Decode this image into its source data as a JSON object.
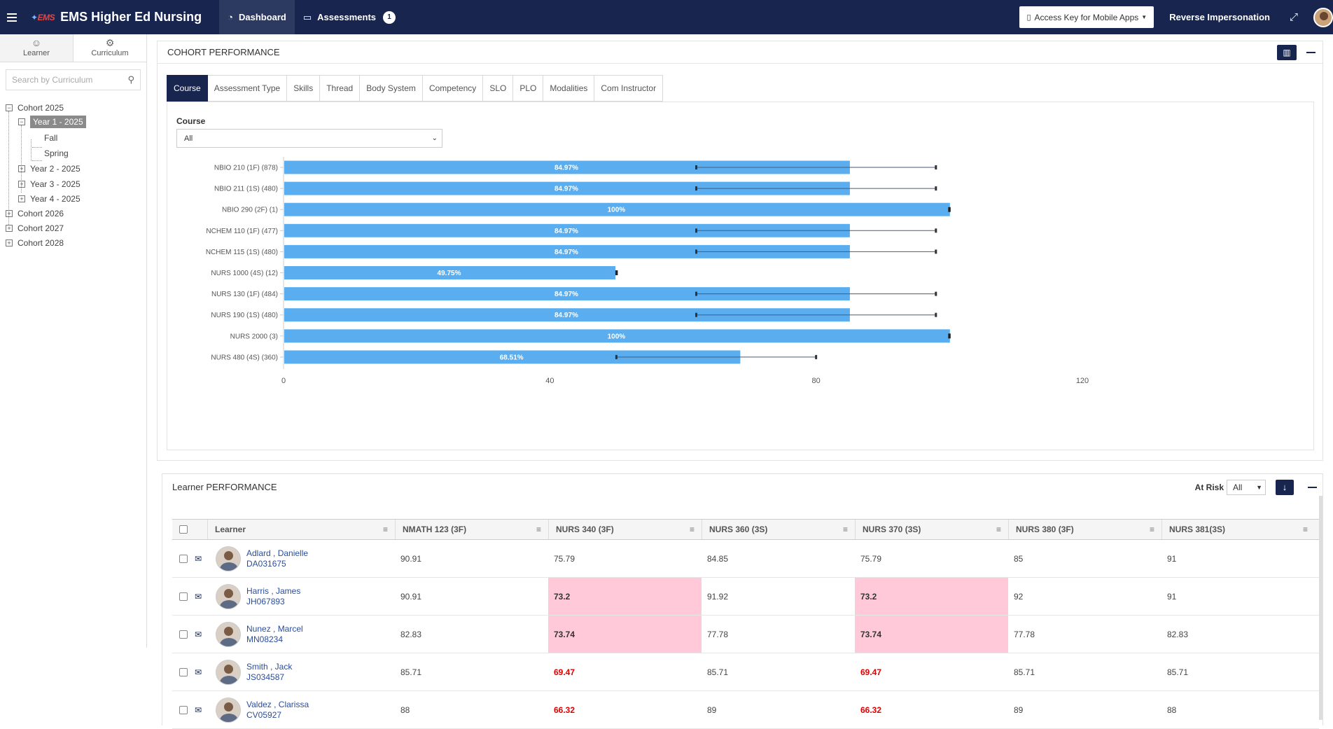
{
  "topnav": {
    "logo": "EMS",
    "title": "EMS Higher Ed Nursing",
    "tabs": [
      {
        "label": "Dashboard",
        "icon": "dashboard-icon"
      },
      {
        "label": "Assessments",
        "icon": "monitor-icon",
        "badge": "1"
      }
    ],
    "access_key": "Access Key for Mobile Apps",
    "reverse_impersonation": "Reverse Impersonation"
  },
  "sidebar": {
    "tabs": [
      {
        "label": "Learner",
        "icon": "user-icon"
      },
      {
        "label": "Curriculum",
        "icon": "curriculum-icon"
      }
    ],
    "search_placeholder": "Search by Curriculum",
    "tree": {
      "cohort2025": "Cohort 2025",
      "year1": "Year 1 - 2025",
      "fall": "Fall",
      "spring": "Spring",
      "year2": "Year 2 - 2025",
      "year3": "Year 3 - 2025",
      "year4": "Year 4 - 2025",
      "cohort2026": "Cohort 2026",
      "cohort2027": "Cohort 2027",
      "cohort2028": "Cohort 2028"
    }
  },
  "cohort": {
    "title": "COHORT PERFORMANCE",
    "tabs": [
      "Course",
      "Assessment Type",
      "Skills",
      "Thread",
      "Body System",
      "Competency",
      "SLO",
      "PLO",
      "Modalities",
      "Com Instructor"
    ],
    "filter_label": "Course",
    "filter_value": "All"
  },
  "chart_data": {
    "type": "bar",
    "orientation": "horizontal",
    "categories": [
      "NBIO 210 (1F) (878)",
      "NBIO 211 (1S) (480)",
      "NBIO 290 (2F) (1)",
      "NCHEM 110 (1F) (477)",
      "NCHEM 115 (1S) (480)",
      "NURS 1000 (4S) (12)",
      "NURS 130 (1F) (484)",
      "NURS 190 (1S) (480)",
      "NURS 2000 (3)",
      "NURS 480 (4S) (360)"
    ],
    "values": [
      84.97,
      84.97,
      100,
      84.97,
      84.97,
      49.75,
      84.97,
      84.97,
      100,
      68.51
    ],
    "labels": [
      "84.97%",
      "84.97%",
      "100%",
      "84.97%",
      "84.97%",
      "49.75%",
      "84.97%",
      "84.97%",
      "100%",
      "68.51%"
    ],
    "ranges": [
      [
        62,
        98
      ],
      [
        62,
        98
      ],
      [
        100,
        100
      ],
      [
        62,
        98
      ],
      [
        62,
        98
      ],
      [
        50,
        50
      ],
      [
        62,
        98
      ],
      [
        62,
        98
      ],
      [
        100,
        100
      ],
      [
        50,
        80
      ]
    ],
    "xlim": [
      0,
      120
    ],
    "xticks": [
      "0",
      "40",
      "80",
      "120"
    ],
    "bar_color": "#5aaef0"
  },
  "learners": {
    "title": "Learner PERFORMANCE",
    "at_risk_label": "At Risk",
    "at_risk_value": "All",
    "columns": [
      "Learner",
      "NMATH 123 (3F)",
      "NURS 340 (3F)",
      "NURS 360 (3S)",
      "NURS 370 (3S)",
      "NURS 380 (3F)",
      "NURS 381(3S)"
    ],
    "rows": [
      {
        "name": "Adlard , Danielle",
        "id": "DA031675",
        "scores": [
          "90.91",
          "75.79",
          "84.85",
          "75.79",
          "85",
          "91"
        ],
        "flags": [
          "",
          "",
          "",
          "",
          "",
          ""
        ]
      },
      {
        "name": "Harris , James",
        "id": "JH067893",
        "scores": [
          "90.91",
          "73.2",
          "91.92",
          "73.2",
          "92",
          "91"
        ],
        "flags": [
          "",
          "risk",
          "",
          "risk",
          "",
          ""
        ]
      },
      {
        "name": "Nunez , Marcel",
        "id": "MN08234",
        "scores": [
          "82.83",
          "73.74",
          "77.78",
          "73.74",
          "77.78",
          "82.83"
        ],
        "flags": [
          "",
          "risk",
          "",
          "risk",
          "",
          ""
        ]
      },
      {
        "name": "Smith , Jack",
        "id": "JS034587",
        "scores": [
          "85.71",
          "69.47",
          "85.71",
          "69.47",
          "85.71",
          "85.71"
        ],
        "flags": [
          "",
          "red",
          "",
          "red",
          "",
          ""
        ]
      },
      {
        "name": "Valdez , Clarissa",
        "id": "CV05927",
        "scores": [
          "88",
          "66.32",
          "89",
          "66.32",
          "89",
          "88"
        ],
        "flags": [
          "",
          "red",
          "",
          "red",
          "",
          ""
        ]
      }
    ]
  }
}
